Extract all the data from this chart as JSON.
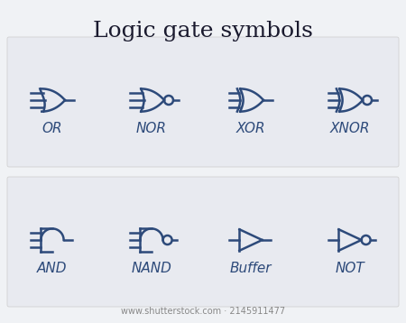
{
  "title": "Logic gate symbols",
  "title_fontsize": 18,
  "title_color": "#1a1a2e",
  "gate_color": "#2d4a7a",
  "gate_linewidth": 1.8,
  "bg_color": "#f0f2f5",
  "panel_color": "#e8eaed",
  "label_fontsize": 11,
  "gates_row1": [
    "OR",
    "NOR",
    "XOR",
    "XNOR"
  ],
  "gates_row2": [
    "AND",
    "NAND",
    "Buffer",
    "NOT"
  ],
  "watermark": "www.shutterstock.com · 2145911477"
}
